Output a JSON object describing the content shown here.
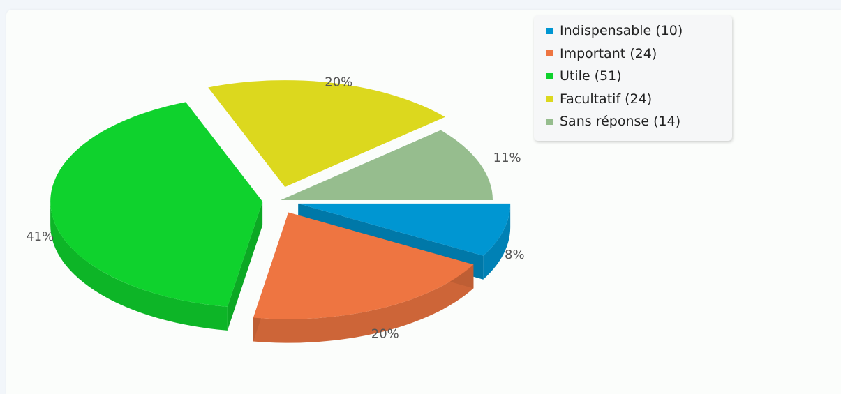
{
  "chart_data": {
    "type": "pie",
    "slices": [
      {
        "label": "Indispensable",
        "count": 10,
        "percent": 8,
        "legend_text": "Indispensable (10)",
        "pct_text": "8%",
        "color": "#0096d2",
        "exploded": true
      },
      {
        "label": "Important",
        "count": 24,
        "percent": 20,
        "legend_text": "Important (24)",
        "pct_text": "20%",
        "color": "#ee7541",
        "exploded": true
      },
      {
        "label": "Utile",
        "count": 51,
        "percent": 41,
        "legend_text": "Utile (51)",
        "pct_text": "41%",
        "color": "#0fd22d",
        "exploded": true
      },
      {
        "label": "Facultatif",
        "count": 24,
        "percent": 20,
        "legend_text": "Facultatif (24)",
        "pct_text": "20%",
        "color": "#dcd81e",
        "exploded": true
      },
      {
        "label": "Sans réponse",
        "count": 14,
        "percent": 11,
        "legend_text": "Sans réponse (14)",
        "pct_text": "11%",
        "color": "#96bd8e",
        "exploded": false
      }
    ],
    "style": "3d",
    "legend_position": "top-right"
  }
}
